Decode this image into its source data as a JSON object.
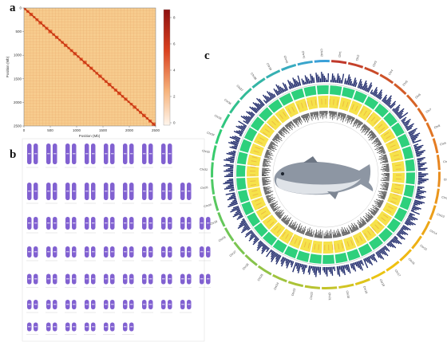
{
  "panels": {
    "a": "a",
    "b": "b",
    "c": "c"
  },
  "heatmap": {
    "x_ticks": [
      "0",
      "500",
      "1000",
      "1500",
      "2000",
      "2500"
    ],
    "y_ticks": [
      "0",
      "500",
      "1000",
      "1500",
      "2000",
      "2500"
    ],
    "x_label": "Position (Mb)",
    "y_label": "Position (Mb)",
    "colorbar_ticks": [
      "8",
      "6",
      "4",
      "2",
      "0"
    ],
    "colors": {
      "background": "#f7cc8e",
      "diagonal": "#e24a1c",
      "grid": "#e9a86a"
    }
  },
  "karyotype": {
    "color": "#6b45c9",
    "rows": [
      8,
      9,
      10,
      10,
      10,
      9,
      6
    ]
  },
  "circos": {
    "chromosomes": [
      "Chr1",
      "Chr2",
      "Chr3",
      "Chr4",
      "Chr5",
      "Chr6",
      "Chr7",
      "Chr8",
      "Chr9",
      "Chr10",
      "Chr11",
      "Chr12",
      "Chr13",
      "Chr14",
      "Chr15",
      "Chr16",
      "Chr17",
      "Chr18",
      "Chr19",
      "Chr20",
      "Chr21",
      "Chr22",
      "Chr23",
      "Chr24",
      "Chr25",
      "Chr26",
      "Chr27",
      "Chr28",
      "Chr29",
      "Chr30",
      "Chr31",
      "Chr32",
      "Chr33",
      "Chr34",
      "Chr35",
      "Chr36",
      "Chr37",
      "Chr38",
      "Chr39",
      "Chr40",
      "Chr41",
      "Chr42"
    ],
    "ring_colors": {
      "outer_gradient": [
        "#c0392b",
        "#e67e22",
        "#f1c40f",
        "#8bc34a",
        "#2ecc71",
        "#3aa0d8"
      ],
      "navy_bars": "#1f2a6b",
      "green_band": "#2ed07c",
      "yellow_band": "#f6e24a",
      "grey_bars": "#4d4d4d"
    }
  }
}
